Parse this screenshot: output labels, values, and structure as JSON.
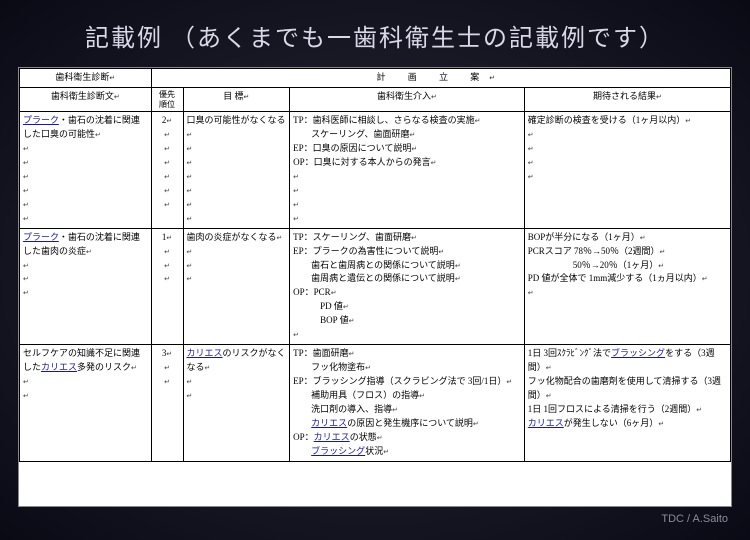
{
  "title": "記載例 （あくまでも一歯科衛生士の記載例です）",
  "footer": "TDC / A.Saito",
  "glyph": {
    "ret": "↵",
    "rj": "↵"
  },
  "headers": {
    "top_left": "歯科衛生診断",
    "top_right": "計 画 立 案",
    "col1": "歯科衛生診断文",
    "col2": "優先\n順位",
    "col3": "目 標",
    "col4": "歯科衛生介入",
    "col5": "期待される結果"
  },
  "rows": [
    {
      "diag_pre": "",
      "diag_ul": "プラーク",
      "diag_post": "・歯石の沈着に関連した口臭の可能性",
      "priority": "2",
      "goal": [
        "口臭の可能性がなくなる"
      ],
      "interv": [
        "TP：歯科医師に相談し、さらなる検査の実施",
        "　　スケーリング、歯面研磨",
        "EP：口臭の原因について説明",
        "OP：口臭に対する本人からの発言"
      ],
      "expect": [
        "確定診断の検査を受ける（1ヶ月以内）"
      ],
      "pad": 4
    },
    {
      "diag_pre": "",
      "diag_ul": "プラーク",
      "diag_post": "・歯石の沈着に関連した歯肉の炎症",
      "priority": "1",
      "goal": [
        "歯肉の炎症がなくなる"
      ],
      "interv": [
        "TP：スケーリング、歯面研磨",
        "EP：プラークの為害性について説明",
        "　　歯石と歯周病との関係について説明",
        "　　歯周病と遺伝との関係について説明",
        "OP：PCR",
        "　　　PD 値",
        "　　　BOP 値"
      ],
      "expect": [
        "BOPが半分になる（1ヶ月）",
        "PCRスコア 78％→50％（2週間）",
        "　　　　　50％→20％（1ヶ月）",
        "PD 値が全体で 1mm減少する（1ヵ月以内）"
      ],
      "pad": 1
    },
    {
      "diag_pre": "セルフケアの知識不足に関連した",
      "diag_ul": "カリエス",
      "diag_post": "多発のリスク",
      "priority": "3",
      "goal_ul": "カリエス",
      "goal_post": "のリスクがなくなる",
      "interv": [
        "TP：歯面研磨",
        "　　フッ化物塗布",
        "EP：ブラッシング指導（スクラビング法で 3回/1日）",
        "　　補助用具（フロス）の指導",
        "　　洗口剤の導入、指導"
      ],
      "interv_mix": {
        "pre": "　　",
        "ul": "カリエス",
        "post": "の原因と発生機序について説明"
      },
      "interv_op": [
        {
          "pre": "OP：",
          "ul": "カリエス",
          "post": "の状態"
        },
        {
          "pre": "　　",
          "ul": "ブラッシング",
          "post": "状況"
        }
      ],
      "expect_mix": [
        {
          "pre": "1日 3回ｽｸﾗﾋﾞﾝｸﾞ法で",
          "ul": "ブラッシング",
          "post": "をする（3週間）"
        },
        {
          "text": "フッ化物配合の歯磨剤を使用して清掃する（3週間）"
        },
        {
          "text": "1日 1回フロスによる清掃を行う（2週間）"
        },
        {
          "pre": "",
          "ul": "カリエス",
          "post": "が発生しない（6ヶ月）"
        }
      ],
      "pad": 0
    }
  ]
}
